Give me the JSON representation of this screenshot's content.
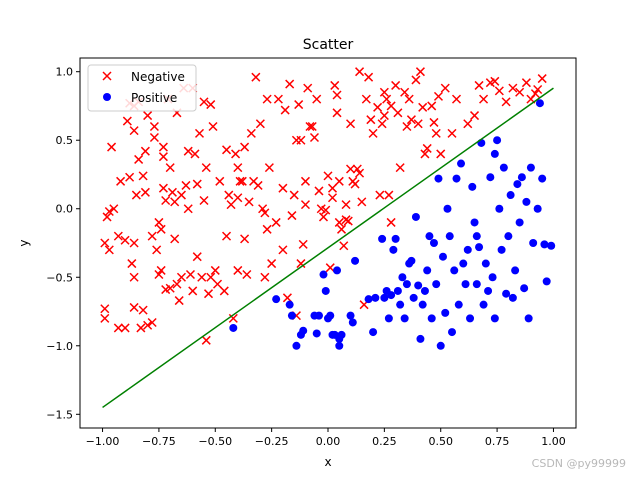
{
  "chart_data": {
    "type": "scatter",
    "title": "Scatter",
    "xlabel": "x",
    "ylabel": "y",
    "xlim": [
      -1.1,
      1.1
    ],
    "ylim": [
      -1.6,
      1.1
    ],
    "xticks": [
      -1.0,
      -0.75,
      -0.5,
      -0.25,
      0.0,
      0.25,
      0.5,
      0.75,
      1.0
    ],
    "xtick_labels": [
      "−1.00",
      "−0.75",
      "−0.50",
      "−0.25",
      "0.00",
      "0.25",
      "0.50",
      "0.75",
      "1.00"
    ],
    "yticks": [
      -1.5,
      -1.0,
      -0.5,
      0.0,
      0.5,
      1.0
    ],
    "ytick_labels": [
      "−1.5",
      "−1.0",
      "−0.5",
      "0.0",
      "0.5",
      "1.0"
    ],
    "grid": false,
    "legend_position": "top-left",
    "series": [
      {
        "name": "Negative",
        "marker": "x",
        "color": "#ff0000",
        "points": [
          [
            -0.99,
            -0.8
          ],
          [
            -0.99,
            -0.73
          ],
          [
            -0.99,
            -0.25
          ],
          [
            -0.98,
            -0.06
          ],
          [
            -0.97,
            -0.3
          ],
          [
            -0.97,
            -0.02
          ],
          [
            -0.96,
            0.45
          ],
          [
            -0.95,
            0.0
          ],
          [
            -0.93,
            -0.87
          ],
          [
            -0.93,
            -0.2
          ],
          [
            -0.92,
            0.2
          ],
          [
            -0.9,
            -0.87
          ],
          [
            -0.9,
            -0.23
          ],
          [
            -0.89,
            0.64
          ],
          [
            -0.88,
            0.77
          ],
          [
            -0.88,
            0.23
          ],
          [
            -0.87,
            -0.4
          ],
          [
            -0.86,
            -0.5
          ],
          [
            -0.86,
            -0.72
          ],
          [
            -0.86,
            -0.25
          ],
          [
            -0.86,
            0.57
          ],
          [
            -0.86,
            0.75
          ],
          [
            -0.85,
            0.1
          ],
          [
            -0.84,
            0.36
          ],
          [
            -0.84,
            0.78
          ],
          [
            -0.83,
            -0.87
          ],
          [
            -0.82,
            -0.74
          ],
          [
            -0.82,
            0.24
          ],
          [
            -0.81,
            0.42
          ],
          [
            -0.81,
            0.12
          ],
          [
            -0.8,
            0.68
          ],
          [
            -0.8,
            -0.85
          ],
          [
            -0.78,
            -0.2
          ],
          [
            -0.78,
            -0.83
          ],
          [
            -0.77,
            0.6
          ],
          [
            -0.77,
            0.52
          ],
          [
            -0.76,
            -0.3
          ],
          [
            -0.75,
            -0.48
          ],
          [
            -0.75,
            -0.1
          ],
          [
            -0.74,
            -0.45
          ],
          [
            -0.74,
            -0.15
          ],
          [
            -0.73,
            0.15
          ],
          [
            -0.73,
            0.45
          ],
          [
            -0.73,
            0.38
          ],
          [
            -0.72,
            0.06
          ],
          [
            -0.72,
            -0.59
          ],
          [
            -0.71,
            0.8
          ],
          [
            -0.7,
            0.3
          ],
          [
            -0.7,
            -0.58
          ],
          [
            -0.69,
            0.12
          ],
          [
            -0.68,
            -0.22
          ],
          [
            -0.68,
            0.05
          ],
          [
            -0.67,
            -0.55
          ],
          [
            -0.67,
            0.7
          ],
          [
            -0.66,
            -0.67
          ],
          [
            -0.65,
            0.1
          ],
          [
            -0.65,
            -0.5
          ],
          [
            -0.64,
            0.88
          ],
          [
            -0.63,
            0.17
          ],
          [
            -0.62,
            0.42
          ],
          [
            -0.62,
            0.0
          ],
          [
            -0.61,
            -0.48
          ],
          [
            -0.6,
            0.88
          ],
          [
            -0.6,
            -0.6
          ],
          [
            -0.59,
            0.4
          ],
          [
            -0.58,
            0.18
          ],
          [
            -0.58,
            -0.35
          ],
          [
            -0.57,
            0.55
          ],
          [
            -0.56,
            -0.5
          ],
          [
            -0.55,
            0.78
          ],
          [
            -0.55,
            0.06
          ],
          [
            -0.54,
            -0.96
          ],
          [
            -0.54,
            0.3
          ],
          [
            -0.53,
            -0.62
          ],
          [
            -0.52,
            0.76
          ],
          [
            -0.52,
            -0.5
          ],
          [
            -0.51,
            0.6
          ],
          [
            -0.5,
            -0.45
          ],
          [
            -0.49,
            -0.55
          ],
          [
            -0.48,
            0.2
          ],
          [
            -0.46,
            -0.6
          ],
          [
            -0.45,
            -0.2
          ],
          [
            -0.45,
            0.43
          ],
          [
            -0.44,
            0.1
          ],
          [
            -0.43,
            0.03
          ],
          [
            -0.42,
            -0.8
          ],
          [
            -0.41,
            0.4
          ],
          [
            -0.4,
            0.08
          ],
          [
            -0.4,
            -0.45
          ],
          [
            -0.4,
            0.3
          ],
          [
            -0.39,
            0.2
          ],
          [
            -0.38,
            0.2
          ],
          [
            -0.37,
            0.45
          ],
          [
            -0.37,
            -0.22
          ],
          [
            -0.36,
            -0.48
          ],
          [
            -0.35,
            0.05
          ],
          [
            -0.34,
            0.55
          ],
          [
            -0.33,
            0.2
          ],
          [
            -0.32,
            0.96
          ],
          [
            -0.31,
            0.17
          ],
          [
            -0.3,
            0.62
          ],
          [
            -0.29,
            0.0
          ],
          [
            -0.28,
            -0.03
          ],
          [
            -0.28,
            -0.5
          ],
          [
            -0.27,
            0.8
          ],
          [
            -0.27,
            -0.15
          ],
          [
            -0.26,
            0.3
          ],
          [
            -0.25,
            -0.4
          ],
          [
            -0.23,
            -0.1
          ],
          [
            -0.22,
            0.8
          ],
          [
            -0.2,
            -0.3
          ],
          [
            -0.2,
            0.15
          ],
          [
            -0.19,
            0.72
          ],
          [
            -0.18,
            -0.65
          ],
          [
            -0.17,
            0.91
          ],
          [
            -0.16,
            -0.05
          ],
          [
            -0.15,
            0.1
          ],
          [
            -0.14,
            -0.78
          ],
          [
            -0.14,
            0.5
          ],
          [
            -0.13,
            0.76
          ],
          [
            -0.12,
            0.5
          ],
          [
            -0.12,
            -0.4
          ],
          [
            -0.11,
            -0.26
          ],
          [
            -0.1,
            0.2
          ],
          [
            -0.1,
            0.03
          ],
          [
            -0.09,
            0.88
          ],
          [
            -0.08,
            0.6
          ],
          [
            -0.07,
            0.6
          ],
          [
            -0.06,
            0.52
          ],
          [
            -0.05,
            0.8
          ],
          [
            -0.04,
            0.13
          ],
          [
            -0.03,
            0.0
          ],
          [
            -0.02,
            -0.06
          ],
          [
            -0.01,
            -0.01
          ],
          [
            0.0,
            0.24
          ],
          [
            0.01,
            -0.43
          ],
          [
            0.02,
            0.15
          ],
          [
            0.02,
            0.08
          ],
          [
            0.03,
            0.9
          ],
          [
            0.04,
            0.7
          ],
          [
            0.04,
            0.83
          ],
          [
            0.05,
            0.2
          ],
          [
            0.05,
            -0.1
          ],
          [
            0.06,
            -0.15
          ],
          [
            0.07,
            -0.27
          ],
          [
            0.08,
            -0.08
          ],
          [
            0.08,
            0.03
          ],
          [
            0.09,
            -0.09
          ],
          [
            0.1,
            0.62
          ],
          [
            0.1,
            0.29
          ],
          [
            0.11,
            0.2
          ],
          [
            0.12,
            0.18
          ],
          [
            0.13,
            0.29
          ],
          [
            0.14,
            1.0
          ],
          [
            0.14,
            0.26
          ],
          [
            0.15,
            0.05
          ],
          [
            0.16,
            -0.7
          ],
          [
            0.17,
            0.8
          ],
          [
            0.18,
            0.96
          ],
          [
            0.19,
            0.65
          ],
          [
            0.2,
            0.55
          ],
          [
            0.22,
            0.74
          ],
          [
            0.23,
            0.1
          ],
          [
            0.24,
            0.62
          ],
          [
            0.25,
            0.85
          ],
          [
            0.25,
            0.68
          ],
          [
            0.26,
            0.8
          ],
          [
            0.27,
            0.1
          ],
          [
            0.28,
            0.75
          ],
          [
            0.28,
            -0.1
          ],
          [
            0.3,
            0.9
          ],
          [
            0.31,
            0.7
          ],
          [
            0.32,
            0.3
          ],
          [
            0.34,
            0.85
          ],
          [
            0.35,
            0.6
          ],
          [
            0.36,
            0.8
          ],
          [
            0.37,
            0.65
          ],
          [
            0.39,
            0.94
          ],
          [
            0.4,
            0.62
          ],
          [
            0.41,
            1.0
          ],
          [
            0.42,
            0.74
          ],
          [
            0.43,
            0.4
          ],
          [
            0.44,
            0.44
          ],
          [
            0.46,
            0.75
          ],
          [
            0.47,
            0.63
          ],
          [
            0.48,
            0.55
          ],
          [
            0.49,
            0.82
          ],
          [
            0.5,
            0.4
          ],
          [
            0.52,
            0.88
          ],
          [
            0.55,
            0.55
          ],
          [
            0.57,
            0.8
          ],
          [
            0.62,
            0.62
          ],
          [
            0.65,
            0.68
          ],
          [
            0.67,
            0.9
          ],
          [
            0.69,
            0.8
          ],
          [
            0.72,
            0.92
          ],
          [
            0.74,
            0.93
          ],
          [
            0.76,
            0.86
          ],
          [
            0.79,
            0.78
          ],
          [
            0.82,
            0.88
          ],
          [
            0.85,
            0.85
          ],
          [
            0.88,
            0.92
          ],
          [
            0.9,
            0.8
          ],
          [
            0.92,
            0.84
          ],
          [
            0.93,
            0.87
          ],
          [
            0.95,
            0.95
          ]
        ]
      },
      {
        "name": "Positive",
        "marker": "o",
        "color": "#0000ff",
        "points": [
          [
            -0.42,
            -0.87
          ],
          [
            -0.23,
            -0.66
          ],
          [
            -0.17,
            -0.7
          ],
          [
            -0.16,
            -0.78
          ],
          [
            -0.14,
            -1.0
          ],
          [
            -0.12,
            -0.92
          ],
          [
            -0.11,
            -0.89
          ],
          [
            -0.06,
            -0.78
          ],
          [
            -0.05,
            -0.91
          ],
          [
            -0.04,
            -0.78
          ],
          [
            -0.02,
            -0.48
          ],
          [
            -0.01,
            -0.6
          ],
          [
            0.0,
            -0.8
          ],
          [
            0.01,
            -0.78
          ],
          [
            0.02,
            -0.92
          ],
          [
            0.03,
            -0.92
          ],
          [
            0.04,
            -0.45
          ],
          [
            0.05,
            -0.95
          ],
          [
            0.05,
            -1.0
          ],
          [
            0.06,
            -0.92
          ],
          [
            0.1,
            -0.78
          ],
          [
            0.11,
            -0.83
          ],
          [
            0.12,
            -0.38
          ],
          [
            0.18,
            -0.66
          ],
          [
            0.2,
            -0.9
          ],
          [
            0.21,
            -0.65
          ],
          [
            0.24,
            -0.22
          ],
          [
            0.25,
            -0.65
          ],
          [
            0.26,
            -0.6
          ],
          [
            0.27,
            -0.8
          ],
          [
            0.28,
            -0.63
          ],
          [
            0.29,
            -0.3
          ],
          [
            0.3,
            -0.22
          ],
          [
            0.31,
            -0.6
          ],
          [
            0.32,
            -0.7
          ],
          [
            0.33,
            -0.5
          ],
          [
            0.34,
            -0.8
          ],
          [
            0.35,
            -0.55
          ],
          [
            0.36,
            -0.4
          ],
          [
            0.37,
            -0.38
          ],
          [
            0.38,
            -0.65
          ],
          [
            0.39,
            -0.06
          ],
          [
            0.4,
            -0.56
          ],
          [
            0.41,
            -0.95
          ],
          [
            0.42,
            -0.7
          ],
          [
            0.43,
            -0.6
          ],
          [
            0.44,
            -0.45
          ],
          [
            0.45,
            -0.2
          ],
          [
            0.46,
            -0.8
          ],
          [
            0.47,
            -0.25
          ],
          [
            0.48,
            -0.55
          ],
          [
            0.49,
            0.22
          ],
          [
            0.5,
            -1.0
          ],
          [
            0.51,
            -0.35
          ],
          [
            0.52,
            -0.76
          ],
          [
            0.53,
            0.0
          ],
          [
            0.54,
            -0.2
          ],
          [
            0.55,
            -0.9
          ],
          [
            0.56,
            -0.45
          ],
          [
            0.57,
            0.22
          ],
          [
            0.58,
            -0.7
          ],
          [
            0.59,
            0.33
          ],
          [
            0.6,
            -0.4
          ],
          [
            0.61,
            -0.55
          ],
          [
            0.62,
            -0.3
          ],
          [
            0.63,
            -0.8
          ],
          [
            0.64,
            0.16
          ],
          [
            0.65,
            -0.1
          ],
          [
            0.66,
            -0.55
          ],
          [
            0.67,
            -0.28
          ],
          [
            0.68,
            0.48
          ],
          [
            0.69,
            -0.7
          ],
          [
            0.7,
            -0.4
          ],
          [
            0.71,
            -0.6
          ],
          [
            0.72,
            0.23
          ],
          [
            0.73,
            -0.5
          ],
          [
            0.74,
            -0.8
          ],
          [
            0.75,
            0.5
          ],
          [
            0.76,
            0.0
          ],
          [
            0.77,
            -0.3
          ],
          [
            0.78,
            0.3
          ],
          [
            0.79,
            -0.62
          ],
          [
            0.8,
            -0.2
          ],
          [
            0.81,
            0.1
          ],
          [
            0.82,
            -0.65
          ],
          [
            0.83,
            -0.45
          ],
          [
            0.84,
            0.18
          ],
          [
            0.85,
            -0.1
          ],
          [
            0.86,
            0.23
          ],
          [
            0.87,
            -0.58
          ],
          [
            0.88,
            0.05
          ],
          [
            0.89,
            -0.8
          ],
          [
            0.9,
            0.3
          ],
          [
            0.91,
            -0.25
          ],
          [
            0.93,
            0.0
          ],
          [
            0.94,
            0.77
          ],
          [
            0.95,
            0.22
          ],
          [
            0.96,
            -0.26
          ],
          [
            0.97,
            -0.53
          ],
          [
            0.99,
            -0.27
          ],
          [
            0.74,
            0.4
          ],
          [
            0.66,
            -0.2
          ]
        ]
      }
    ],
    "boundary_line": {
      "color": "#008000",
      "x": [
        -1.0,
        1.0
      ],
      "y": [
        -1.45,
        0.88
      ]
    }
  },
  "watermark": "CSDN @py99999"
}
